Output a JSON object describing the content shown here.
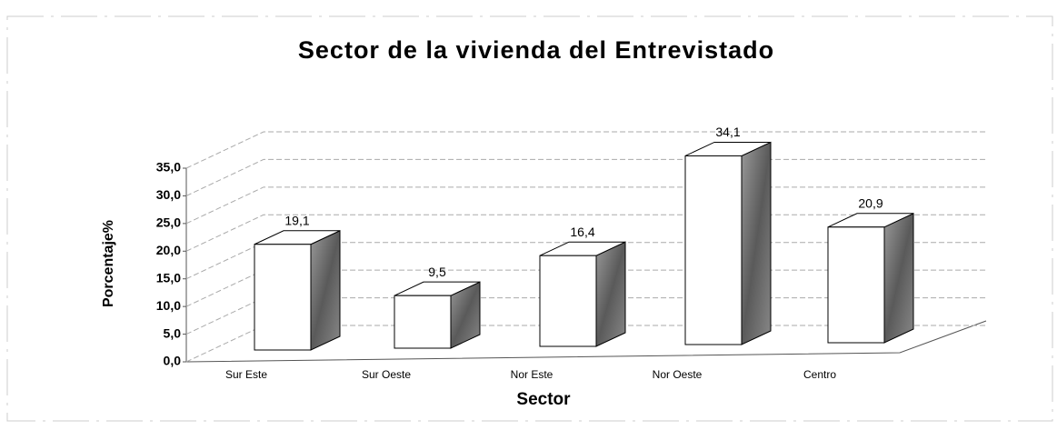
{
  "chart_data": {
    "type": "bar3d",
    "title": "Sector de la vivienda del Entrevistado",
    "x_label": "Sector",
    "y_label": "Porcentaje%",
    "categories": [
      "Sur Este",
      "Sur Oeste",
      "Nor Este",
      "Nor Oeste",
      "Centro"
    ],
    "values": [
      19.1,
      9.5,
      16.4,
      34.1,
      20.9
    ],
    "value_labels": [
      "19,1",
      "9,5",
      "16,4",
      "34,1",
      "20,9"
    ],
    "ylim": [
      0,
      35
    ],
    "yticks": [
      {
        "value": 0,
        "label": "0,0"
      },
      {
        "value": 5,
        "label": "5,0"
      },
      {
        "value": 10,
        "label": "10,0"
      },
      {
        "value": 15,
        "label": "15,0"
      },
      {
        "value": 20,
        "label": "20,0"
      },
      {
        "value": 25,
        "label": "25,0"
      },
      {
        "value": 30,
        "label": "30,0"
      },
      {
        "value": 35,
        "label": "35,0"
      }
    ],
    "grid": true,
    "color": "#ffffff"
  }
}
